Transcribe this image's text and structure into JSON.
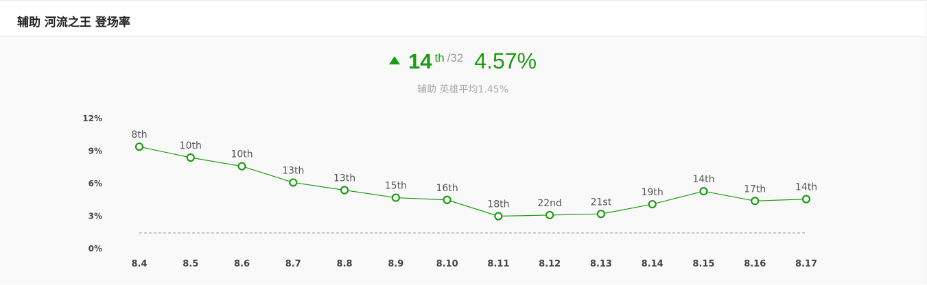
{
  "header": {
    "title": "辅助 河流之王 登场率"
  },
  "summary": {
    "trend": "up",
    "rank": "14",
    "rank_suffix": "th",
    "rank_total": "/32",
    "rate": "4.57%",
    "subtitle": "辅助 英雄平均1.45%"
  },
  "colors": {
    "accent": "#1a9b10",
    "line": "#1a9b10",
    "average_line": "#999999"
  },
  "chart_data": {
    "type": "line",
    "title": "",
    "xlabel": "",
    "ylabel": "",
    "categories": [
      "8.4",
      "8.5",
      "8.6",
      "8.7",
      "8.8",
      "8.9",
      "8.10",
      "8.11",
      "8.12",
      "8.13",
      "8.14",
      "8.15",
      "8.16",
      "8.17"
    ],
    "series": [
      {
        "values": [
          9.4,
          8.4,
          7.6,
          6.1,
          5.4,
          4.7,
          4.5,
          3.0,
          3.1,
          3.2,
          4.1,
          5.3,
          4.4,
          4.57
        ],
        "point_labels": [
          "8th",
          "10th",
          "10th",
          "13th",
          "13th",
          "15th",
          "16th",
          "18th",
          "22nd",
          "21st",
          "19th",
          "14th",
          "17th",
          "14th"
        ]
      }
    ],
    "reference_line": {
      "value": 1.45,
      "style": "dashed"
    },
    "ylim": [
      0,
      12
    ],
    "yticks": [
      {
        "value": 0,
        "label": "0%"
      },
      {
        "value": 3,
        "label": "3%"
      },
      {
        "value": 6,
        "label": "6%"
      },
      {
        "value": 9,
        "label": "9%"
      },
      {
        "value": 12,
        "label": "12%"
      }
    ],
    "grid": false,
    "legend": "none"
  }
}
